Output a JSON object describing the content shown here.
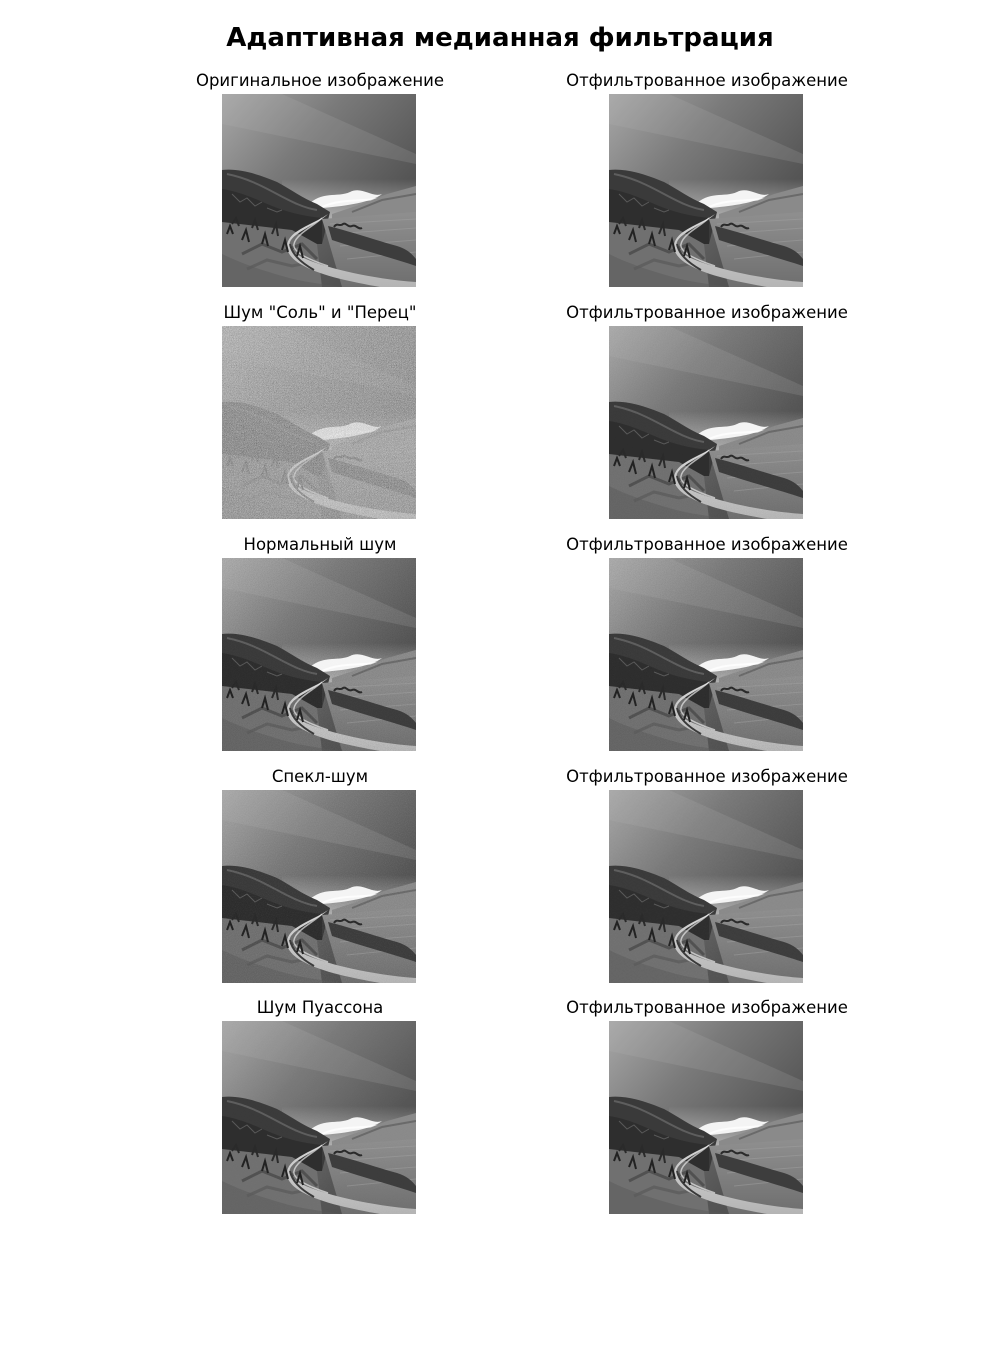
{
  "figure": {
    "title": "Адаптивная медианная фильтрация"
  },
  "rows": [
    {
      "left_title": "Оригинальное изображение",
      "right_title": "Отфильтрованное изображение",
      "left_noise": "none",
      "right_noise": "none"
    },
    {
      "left_title": "Шум \"Соль\" и \"Перец\"",
      "right_title": "Отфильтрованное изображение",
      "left_noise": "salt-and-pepper",
      "right_noise": "light"
    },
    {
      "left_title": "Нормальный шум",
      "right_title": "Отфильтрованное изображение",
      "left_noise": "gaussian",
      "right_noise": "gaussian-filtered"
    },
    {
      "left_title": "Спекл-шум",
      "right_title": "Отфильтрованное изображение",
      "left_noise": "speckle",
      "right_noise": "speckle-filtered"
    },
    {
      "left_title": "Шум Пуассона",
      "right_title": "Отфильтрованное изображение",
      "left_noise": "poisson",
      "right_noise": "none"
    }
  ]
}
